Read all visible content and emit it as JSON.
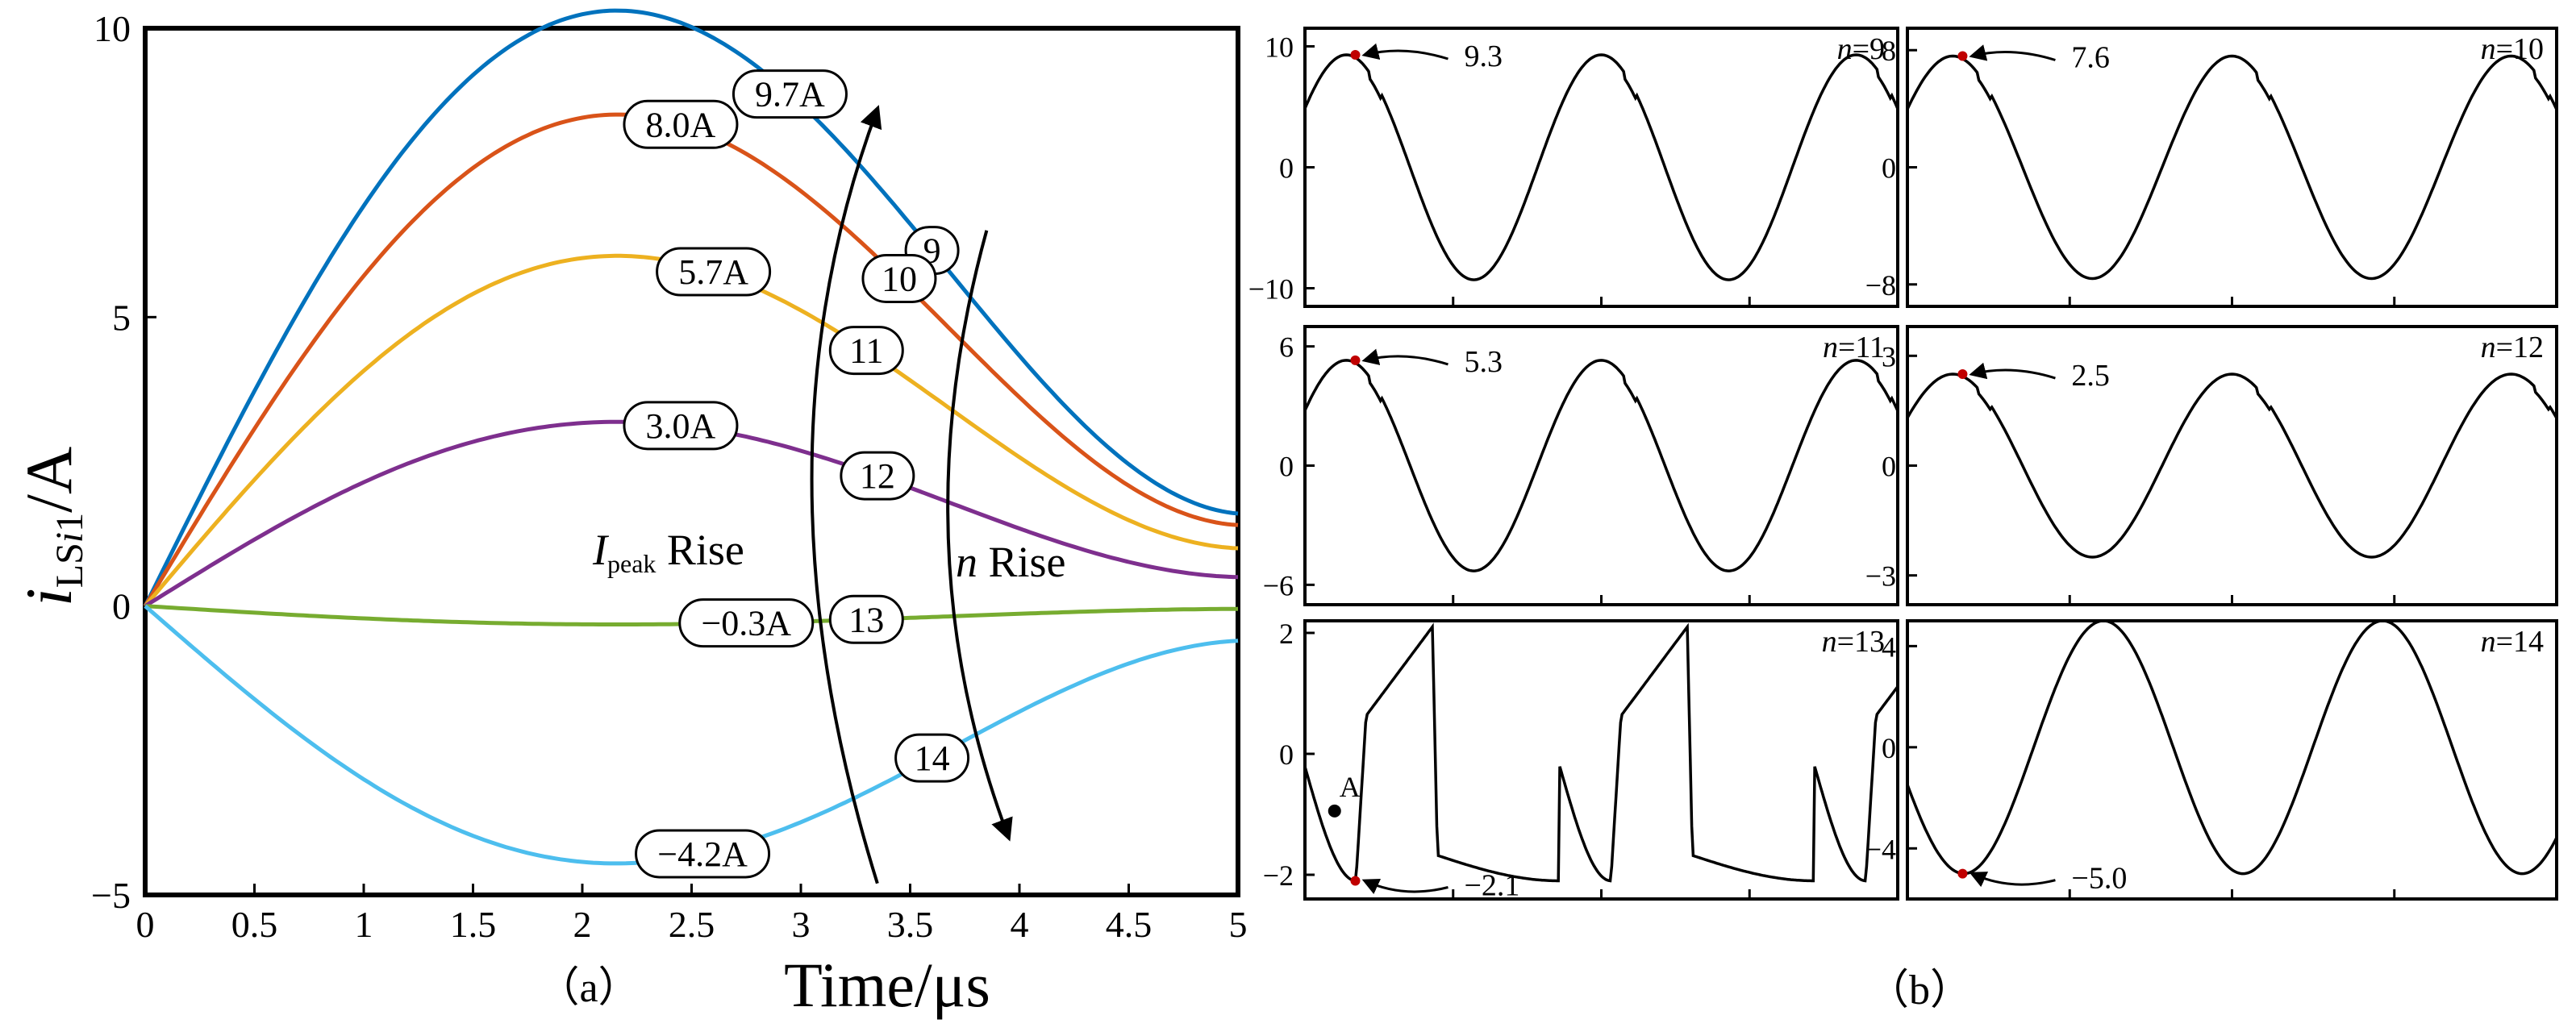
{
  "chart_data": [
    {
      "id": "a",
      "type": "line",
      "caption": "（a）",
      "title": "",
      "xlabel": "Time/μs",
      "ylabel_main": "i",
      "ylabel_sub": "LS",
      "ylabel_sub_i": "i",
      "ylabel_sub_one": "1",
      "ylabel_unit": "/A",
      "xlim": [
        0,
        5
      ],
      "ylim": [
        -5,
        10
      ],
      "xticks": [
        0,
        0.5,
        1,
        1.5,
        2,
        2.5,
        3,
        3.5,
        4,
        4.5,
        5
      ],
      "xtick_labels": [
        "0",
        "0.5",
        "1",
        "1.5",
        "2",
        "2.5",
        "3",
        "3.5",
        "4",
        "4.5",
        "5"
      ],
      "yticks": [
        -5,
        0,
        5,
        10
      ],
      "ytick_labels": [
        "−5",
        "0",
        "5",
        "10"
      ],
      "series": [
        {
          "name": "n=9",
          "n": "9",
          "color": "#0072BD",
          "peak": 9.7,
          "end": 1.6,
          "peak_label": "9.7A",
          "n_label_x": 3.6,
          "peak_label_x": 2.95
        },
        {
          "name": "n=10",
          "n": "10",
          "color": "#D95319",
          "peak": 8.0,
          "end": 1.4,
          "peak_label": "8.0A",
          "n_label_x": 3.45,
          "peak_label_x": 2.45
        },
        {
          "name": "n=11",
          "n": "11",
          "color": "#EDB120",
          "peak": 5.7,
          "end": 1.0,
          "peak_label": "5.7A",
          "n_label_x": 3.3,
          "peak_label_x": 2.6
        },
        {
          "name": "n=12",
          "n": "12",
          "color": "#7E2F8E",
          "peak": 3.0,
          "end": 0.5,
          "peak_label": "3.0A",
          "n_label_x": 3.35,
          "peak_label_x": 2.45
        },
        {
          "name": "n=13",
          "n": "13",
          "color": "#77AC30",
          "peak": -0.3,
          "end": -0.05,
          "peak_label": "−0.3A",
          "n_label_x": 3.3,
          "peak_label_x": 2.75
        },
        {
          "name": "n=14",
          "n": "14",
          "color": "#4DBEEE",
          "peak": -4.2,
          "end": -0.6,
          "peak_label": "−4.2A",
          "n_label_x": 3.6,
          "peak_label_x": 2.55
        }
      ],
      "annotations": {
        "ipeak_main": "I",
        "ipeak_sub": "peak",
        "ipeak_tail": " Rise",
        "n_main": "n",
        "n_tail": "  Rise"
      }
    },
    {
      "id": "b",
      "type": "line",
      "caption": "（b）",
      "panels": [
        {
          "n_label": "9",
          "ylim": [
            -11.5,
            11.5
          ],
          "yticks": [
            10,
            0,
            -10
          ],
          "ytick_labels": [
            "10",
            "0",
            "−10"
          ],
          "amp": 9.3,
          "peak_label": "9.3",
          "style": "sine"
        },
        {
          "n_label": "10",
          "ylim": [
            -9.5,
            9.5
          ],
          "yticks": [
            8,
            0,
            -8
          ],
          "ytick_labels": [
            "8",
            "0",
            "−8"
          ],
          "amp": 7.6,
          "peak_label": "7.6",
          "style": "sine"
        },
        {
          "n_label": "11",
          "ylim": [
            -7,
            7
          ],
          "yticks": [
            6,
            0,
            -6
          ],
          "ytick_labels": [
            "6",
            "0",
            "−6"
          ],
          "amp": 5.3,
          "peak_label": "5.3",
          "style": "sine"
        },
        {
          "n_label": "12",
          "ylim": [
            -3.8,
            3.8
          ],
          "yticks": [
            3,
            0,
            -3
          ],
          "ytick_labels": [
            "3",
            "0",
            "−3"
          ],
          "amp": 2.5,
          "peak_label": "2.5",
          "style": "sine"
        },
        {
          "n_label": "13",
          "ylim": [
            -2.4,
            2.2
          ],
          "yticks": [
            2,
            0,
            -2
          ],
          "ytick_labels": [
            "2",
            "0",
            "−2"
          ],
          "amp": -2.1,
          "peak_label": "−2.1",
          "style": "saw",
          "point_label": "A"
        },
        {
          "n_label": "14",
          "ylim": [
            -6,
            5
          ],
          "yticks": [
            4,
            0,
            -4
          ],
          "ytick_labels": [
            "4",
            "0",
            "−4"
          ],
          "amp": -5.0,
          "peak_label": "−5.0",
          "style": "neg"
        }
      ]
    }
  ]
}
